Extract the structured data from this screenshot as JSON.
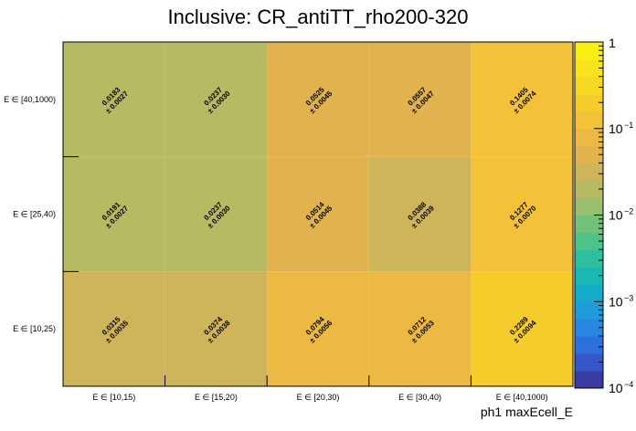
{
  "chart_data": {
    "type": "heatmap",
    "title": "Inclusive: CR_antiTT_rho200-320",
    "xlabel": "ph1 maxEcell_E",
    "ylabel": "",
    "x_categories": [
      "E ∈ [10,15)",
      "E ∈ [15,20)",
      "E ∈ [20,30)",
      "E ∈ [30,40)",
      "E ∈ [40,1000)"
    ],
    "y_categories": [
      "E ∈ [10,25)",
      "E ∈ [25,40)",
      "E ∈ [40,1000)"
    ],
    "values": [
      [
        0.0315,
        0.0374,
        0.0794,
        0.0712,
        0.2289
      ],
      [
        0.0191,
        0.0237,
        0.0514,
        0.0388,
        0.1277
      ],
      [
        0.0183,
        0.0237,
        0.0525,
        0.0557,
        0.1405
      ]
    ],
    "errors": [
      [
        0.0035,
        0.0038,
        0.0056,
        0.0053,
        0.0094
      ],
      [
        0.0027,
        0.003,
        0.0045,
        0.0039,
        0.007
      ],
      [
        0.0027,
        0.003,
        0.0045,
        0.0047,
        0.0074
      ]
    ],
    "value_labels": [
      [
        "0.0315",
        "0.0374",
        "0.0794",
        "0.0712",
        "0.2289"
      ],
      [
        "0.0191",
        "0.0237",
        "0.0514",
        "0.0388",
        "0.1277"
      ],
      [
        "0.0183",
        "0.0237",
        "0.0525",
        "0.0557",
        "0.1405"
      ]
    ],
    "error_labels": [
      [
        "± 0.0035",
        "± 0.0038",
        "± 0.0056",
        "± 0.0053",
        "± 0.0094"
      ],
      [
        "± 0.0027",
        "± 0.0030",
        "± 0.0045",
        "± 0.0039",
        "± 0.0070"
      ],
      [
        "± 0.0027",
        "± 0.0030",
        "± 0.0045",
        "± 0.0047",
        "± 0.0074"
      ]
    ],
    "z_scale": "log",
    "z_range": [
      0.0001,
      1
    ],
    "z_tick_labels": [
      {
        "value": 1,
        "base": "1",
        "exp": ""
      },
      {
        "value": 0.1,
        "base": "10",
        "exp": "−1"
      },
      {
        "value": 0.01,
        "base": "10",
        "exp": "−2"
      },
      {
        "value": 0.001,
        "base": "10",
        "exp": "−3"
      },
      {
        "value": 0.0001,
        "base": "10",
        "exp": "−4"
      }
    ],
    "palette": [
      "#3a3ba0",
      "#3556c8",
      "#2f6fdb",
      "#2a86e0",
      "#1e9bd8",
      "#15acc9",
      "#1ab7b4",
      "#2fbf9f",
      "#4fc28a",
      "#74c27a",
      "#98c06e",
      "#b6bb63",
      "#cfb55a",
      "#e0b34f",
      "#ecb943",
      "#f3c238",
      "#f7cc2d",
      "#f9d725",
      "#fae31c",
      "#f9f013"
    ]
  }
}
